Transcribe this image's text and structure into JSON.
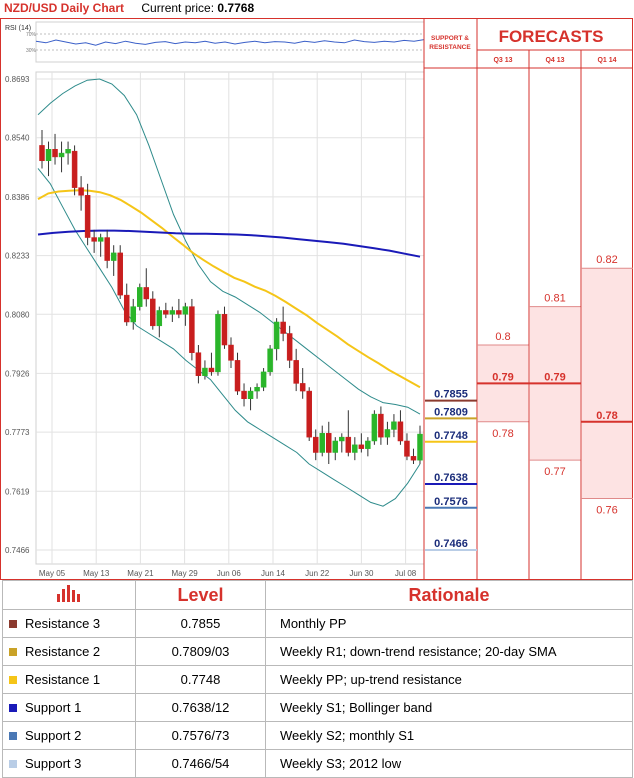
{
  "header": {
    "title": "NZD/USD Daily Chart",
    "current_price_label": "Current price:",
    "current_price": "0.7768"
  },
  "rsi": {
    "label": "RSI (14)",
    "upper": "70%",
    "lower": "30%"
  },
  "support_resistance_header": "SUPPORT & RESISTANCE",
  "forecasts": {
    "title": "FORECASTS",
    "columns": [
      {
        "label": "Q3 13",
        "high": "0.8",
        "mid": "0.79",
        "low": "0.78",
        "high_v": 0.8,
        "mid_v": 0.79,
        "low_v": 0.78
      },
      {
        "label": "Q4 13",
        "high": "0.81",
        "mid": "0.79",
        "low": "0.77",
        "high_v": 0.81,
        "mid_v": 0.79,
        "low_v": 0.77
      },
      {
        "label": "Q1 14",
        "high": "0.82",
        "mid": "0.78",
        "low": "0.76",
        "high_v": 0.82,
        "mid_v": 0.78,
        "low_v": 0.76
      }
    ]
  },
  "levels": [
    {
      "name": "Resistance 3",
      "value": 0.7855,
      "label": "0.7855",
      "level": "0.7855",
      "rationale": "Monthly PP",
      "color": "#8b3a2e"
    },
    {
      "name": "Resistance 2",
      "value": 0.7809,
      "label": "0.7809",
      "level": "0.7809/03",
      "rationale": "Weekly R1; down-trend resistance; 20-day SMA",
      "color": "#c9a227"
    },
    {
      "name": "Resistance 1",
      "value": 0.7748,
      "label": "0.7748",
      "level": "0.7748",
      "rationale": "Weekly PP; up-trend resistance",
      "color": "#f5c518"
    },
    {
      "name": "Support 1",
      "value": 0.7638,
      "label": "0.7638",
      "level": "0.7638/12",
      "rationale": "Weekly S1; Bollinger band",
      "color": "#1a1ab8"
    },
    {
      "name": "Support 2",
      "value": 0.7576,
      "label": "0.7576",
      "level": "0.7576/73",
      "rationale": "Weekly S2; monthly S1",
      "color": "#4a78b5"
    },
    {
      "name": "Support 3",
      "value": 0.7466,
      "label": "0.7466",
      "level": "0.7466/54",
      "rationale": "Weekly S3; 2012 low",
      "color": "#b9cde6"
    }
  ],
  "table_headers": {
    "level": "Level",
    "rationale": "Rationale"
  },
  "colors": {
    "accent": "#d6322c",
    "bull": "#2ab52a",
    "bear": "#c81e1e",
    "sma_fast": "#f5c518",
    "sma_slow": "#1a1ab8",
    "bands": "#2e8b8b",
    "rsi": "#3a5fc8"
  },
  "chart_data": {
    "type": "candlestick",
    "title": "NZD/USD Daily Chart",
    "x_labels": [
      "May 05",
      "May 13",
      "May 21",
      "May 29",
      "Jun 06",
      "Jun 14",
      "Jun 22",
      "Jun 30",
      "Jul 08"
    ],
    "y_ticks": [
      "0.8693",
      "0.8540",
      "0.8386",
      "0.8233",
      "0.8080",
      "0.7926",
      "0.7773",
      "0.7619",
      "0.7466"
    ],
    "ylim": [
      0.7466,
      0.8693
    ],
    "candles": [
      {
        "o": 0.852,
        "h": 0.856,
        "l": 0.846,
        "c": 0.848
      },
      {
        "o": 0.848,
        "h": 0.853,
        "l": 0.844,
        "c": 0.851
      },
      {
        "o": 0.851,
        "h": 0.855,
        "l": 0.847,
        "c": 0.849
      },
      {
        "o": 0.849,
        "h": 0.853,
        "l": 0.845,
        "c": 0.85
      },
      {
        "o": 0.85,
        "h": 0.853,
        "l": 0.847,
        "c": 0.851
      },
      {
        "o": 0.8505,
        "h": 0.852,
        "l": 0.839,
        "c": 0.841
      },
      {
        "o": 0.841,
        "h": 0.844,
        "l": 0.835,
        "c": 0.839
      },
      {
        "o": 0.839,
        "h": 0.842,
        "l": 0.826,
        "c": 0.828
      },
      {
        "o": 0.828,
        "h": 0.83,
        "l": 0.824,
        "c": 0.827
      },
      {
        "o": 0.827,
        "h": 0.829,
        "l": 0.823,
        "c": 0.828
      },
      {
        "o": 0.828,
        "h": 0.83,
        "l": 0.82,
        "c": 0.822
      },
      {
        "o": 0.822,
        "h": 0.826,
        "l": 0.818,
        "c": 0.824
      },
      {
        "o": 0.824,
        "h": 0.826,
        "l": 0.812,
        "c": 0.813
      },
      {
        "o": 0.813,
        "h": 0.816,
        "l": 0.805,
        "c": 0.806
      },
      {
        "o": 0.806,
        "h": 0.812,
        "l": 0.804,
        "c": 0.81
      },
      {
        "o": 0.81,
        "h": 0.816,
        "l": 0.809,
        "c": 0.815
      },
      {
        "o": 0.815,
        "h": 0.82,
        "l": 0.81,
        "c": 0.812
      },
      {
        "o": 0.812,
        "h": 0.814,
        "l": 0.804,
        "c": 0.805
      },
      {
        "o": 0.805,
        "h": 0.81,
        "l": 0.802,
        "c": 0.809
      },
      {
        "o": 0.809,
        "h": 0.811,
        "l": 0.807,
        "c": 0.808
      },
      {
        "o": 0.808,
        "h": 0.81,
        "l": 0.806,
        "c": 0.809
      },
      {
        "o": 0.809,
        "h": 0.812,
        "l": 0.807,
        "c": 0.808
      },
      {
        "o": 0.808,
        "h": 0.811,
        "l": 0.805,
        "c": 0.81
      },
      {
        "o": 0.81,
        "h": 0.812,
        "l": 0.796,
        "c": 0.798
      },
      {
        "o": 0.798,
        "h": 0.8,
        "l": 0.79,
        "c": 0.792
      },
      {
        "o": 0.792,
        "h": 0.796,
        "l": 0.791,
        "c": 0.794
      },
      {
        "o": 0.794,
        "h": 0.798,
        "l": 0.792,
        "c": 0.793
      },
      {
        "o": 0.793,
        "h": 0.809,
        "l": 0.792,
        "c": 0.808
      },
      {
        "o": 0.808,
        "h": 0.81,
        "l": 0.799,
        "c": 0.8
      },
      {
        "o": 0.8,
        "h": 0.802,
        "l": 0.794,
        "c": 0.796
      },
      {
        "o": 0.796,
        "h": 0.798,
        "l": 0.787,
        "c": 0.788
      },
      {
        "o": 0.788,
        "h": 0.79,
        "l": 0.784,
        "c": 0.786
      },
      {
        "o": 0.786,
        "h": 0.789,
        "l": 0.783,
        "c": 0.788
      },
      {
        "o": 0.788,
        "h": 0.79,
        "l": 0.786,
        "c": 0.789
      },
      {
        "o": 0.789,
        "h": 0.794,
        "l": 0.788,
        "c": 0.793
      },
      {
        "o": 0.793,
        "h": 0.8,
        "l": 0.792,
        "c": 0.799
      },
      {
        "o": 0.799,
        "h": 0.807,
        "l": 0.796,
        "c": 0.806
      },
      {
        "o": 0.806,
        "h": 0.81,
        "l": 0.801,
        "c": 0.803
      },
      {
        "o": 0.803,
        "h": 0.805,
        "l": 0.794,
        "c": 0.796
      },
      {
        "o": 0.796,
        "h": 0.799,
        "l": 0.788,
        "c": 0.79
      },
      {
        "o": 0.79,
        "h": 0.794,
        "l": 0.786,
        "c": 0.788
      },
      {
        "o": 0.788,
        "h": 0.789,
        "l": 0.775,
        "c": 0.776
      },
      {
        "o": 0.776,
        "h": 0.778,
        "l": 0.77,
        "c": 0.772
      },
      {
        "o": 0.772,
        "h": 0.779,
        "l": 0.771,
        "c": 0.777
      },
      {
        "o": 0.777,
        "h": 0.78,
        "l": 0.769,
        "c": 0.772
      },
      {
        "o": 0.772,
        "h": 0.776,
        "l": 0.77,
        "c": 0.775
      },
      {
        "o": 0.775,
        "h": 0.777,
        "l": 0.772,
        "c": 0.776
      },
      {
        "o": 0.776,
        "h": 0.783,
        "l": 0.771,
        "c": 0.772
      },
      {
        "o": 0.772,
        "h": 0.776,
        "l": 0.77,
        "c": 0.774
      },
      {
        "o": 0.774,
        "h": 0.777,
        "l": 0.772,
        "c": 0.773
      },
      {
        "o": 0.773,
        "h": 0.776,
        "l": 0.771,
        "c": 0.775
      },
      {
        "o": 0.775,
        "h": 0.783,
        "l": 0.774,
        "c": 0.782
      },
      {
        "o": 0.782,
        "h": 0.784,
        "l": 0.774,
        "c": 0.776
      },
      {
        "o": 0.776,
        "h": 0.78,
        "l": 0.774,
        "c": 0.778
      },
      {
        "o": 0.778,
        "h": 0.782,
        "l": 0.776,
        "c": 0.78
      },
      {
        "o": 0.78,
        "h": 0.783,
        "l": 0.774,
        "c": 0.775
      },
      {
        "o": 0.775,
        "h": 0.777,
        "l": 0.77,
        "c": 0.771
      },
      {
        "o": 0.771,
        "h": 0.773,
        "l": 0.769,
        "c": 0.77
      },
      {
        "o": 0.77,
        "h": 0.779,
        "l": 0.769,
        "c": 0.7768
      }
    ],
    "sma_20": [
      0.838,
      0.8395,
      0.84,
      0.8402,
      0.8403,
      0.8402,
      0.8398,
      0.839,
      0.8378,
      0.8362,
      0.8345,
      0.8325,
      0.8305,
      0.8283,
      0.8262,
      0.824,
      0.8222,
      0.8205,
      0.819,
      0.8175,
      0.8165,
      0.8152,
      0.8142,
      0.8128,
      0.8112,
      0.8095,
      0.8078,
      0.8058,
      0.804,
      0.8022,
      0.8002,
      0.7985,
      0.7968,
      0.7952,
      0.7935,
      0.792,
      0.7905,
      0.789
    ],
    "sma_50": [
      0.8288,
      0.8292,
      0.8295,
      0.8297,
      0.8298,
      0.8298,
      0.8297,
      0.8295,
      0.8293,
      0.8291,
      0.829,
      0.829,
      0.8289,
      0.8288,
      0.8286,
      0.8283,
      0.828,
      0.8276,
      0.8272,
      0.8268,
      0.8264,
      0.8258,
      0.8252,
      0.8246,
      0.8238,
      0.823
    ],
    "bb_upper": [
      0.86,
      0.863,
      0.8655,
      0.8675,
      0.869,
      0.8693,
      0.868,
      0.865,
      0.86,
      0.852,
      0.843,
      0.834,
      0.827,
      0.821,
      0.8165,
      0.814,
      0.8125,
      0.8105,
      0.8085,
      0.806,
      0.8035,
      0.801,
      0.7985,
      0.796,
      0.7935,
      0.791,
      0.7885,
      0.7865,
      0.785,
      0.7845,
      0.7838,
      0.782
    ],
    "bb_lower": [
      0.846,
      0.842,
      0.836,
      0.83,
      0.825,
      0.82,
      0.815,
      0.809,
      0.805,
      0.803,
      0.801,
      0.799,
      0.796,
      0.7935,
      0.791,
      0.787,
      0.783,
      0.78,
      0.778,
      0.776,
      0.774,
      0.772,
      0.769,
      0.767,
      0.765,
      0.763,
      0.761,
      0.759,
      0.758,
      0.76,
      0.764,
      0.769
    ],
    "rsi": [
      52,
      48,
      55,
      50,
      45,
      48,
      42,
      50,
      46,
      52,
      47,
      44,
      49,
      51,
      46,
      50,
      48,
      52,
      47,
      50,
      45,
      49,
      52,
      48,
      51,
      50,
      47,
      52,
      49,
      53,
      50,
      48,
      55,
      51,
      49,
      52,
      50,
      54,
      52,
      56
    ]
  }
}
